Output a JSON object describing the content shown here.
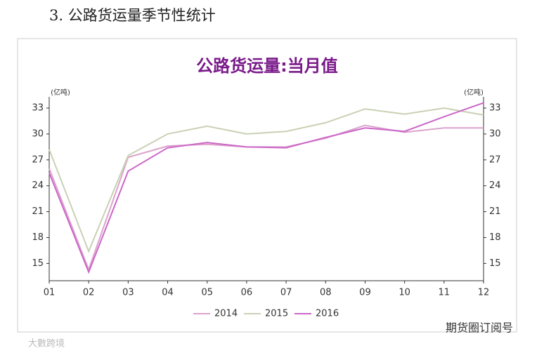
{
  "heading": "3. 公路货运量季节性统计",
  "chart_data": {
    "type": "line",
    "title": "公路货运量:当月值",
    "y_label": "(亿吨)",
    "y2_label": "(亿吨)",
    "categories": [
      "01",
      "02",
      "03",
      "04",
      "05",
      "06",
      "07",
      "08",
      "09",
      "10",
      "11",
      "12"
    ],
    "series": [
      {
        "name": "2014",
        "color": "#dba3cc",
        "values": [
          26,
          14.3,
          27.3,
          28.6,
          28.8,
          28.5,
          28.5,
          29.5,
          31,
          30.2,
          30.7,
          30.7
        ]
      },
      {
        "name": "2015",
        "color": "#c9d1b4",
        "values": [
          28.2,
          16.4,
          27.5,
          30,
          30.9,
          30,
          30.3,
          31.3,
          32.9,
          32.3,
          33,
          32.2
        ]
      },
      {
        "name": "2016",
        "color": "#cc66c8",
        "values": [
          25.5,
          14,
          25.7,
          28.4,
          29,
          28.5,
          28.4,
          29.6,
          30.7,
          30.3,
          32,
          33.6
        ]
      }
    ],
    "ylim": [
      13,
      34.3
    ],
    "yticks": [
      15,
      18,
      21,
      24,
      27,
      30,
      33
    ],
    "y2lim": [
      13,
      34.3
    ],
    "y2ticks": [
      15,
      18,
      21,
      24,
      27,
      30,
      33
    ]
  },
  "watermarks": [
    "大數跨境",
    "期货圈订阅号"
  ]
}
